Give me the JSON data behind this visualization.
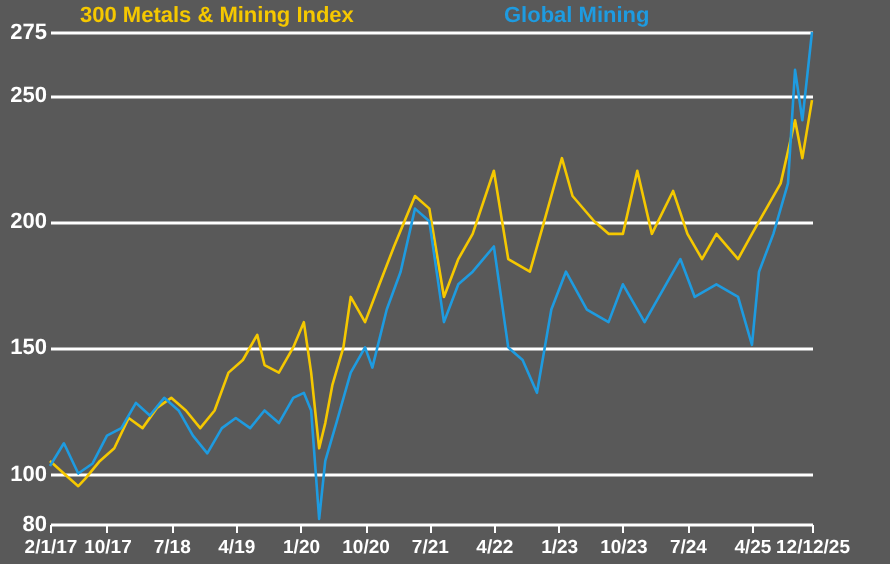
{
  "chart_data": {
    "type": "line",
    "xlim": [
      "2017-02-01",
      "2025-12-12"
    ],
    "xticks": [
      {
        "value": "2017-02-01",
        "label": "2/1/17"
      },
      {
        "value": "2017-10-01",
        "label": "10/17"
      },
      {
        "value": "2018-07-01",
        "label": "7/18"
      },
      {
        "value": "2019-04-01",
        "label": "4/19"
      },
      {
        "value": "2020-01-01",
        "label": "1/20"
      },
      {
        "value": "2020-10-01",
        "label": "10/20"
      },
      {
        "value": "2021-07-01",
        "label": "7/21"
      },
      {
        "value": "2022-04-01",
        "label": "4/22"
      },
      {
        "value": "2023-01-01",
        "label": "1/23"
      },
      {
        "value": "2023-10-01",
        "label": "10/23"
      },
      {
        "value": "2024-07-01",
        "label": "7/24"
      },
      {
        "value": "2025-04-01",
        "label": "4/25"
      },
      {
        "value": "2025-12-12",
        "label": "12/12/25"
      }
    ],
    "ylim": [
      80,
      275
    ],
    "yticks": [
      80,
      100,
      150,
      200,
      250,
      275
    ],
    "grid": "y",
    "legend": "top",
    "series": [
      {
        "name": "300 Metals & Mining Index",
        "color": "#f5c800",
        "x": [
          "2017-02-01",
          "2017-04-01",
          "2017-06-01",
          "2017-07-01",
          "2017-09-01",
          "2017-11-01",
          "2018-01-01",
          "2018-03-01",
          "2018-05-01",
          "2018-07-01",
          "2018-09-01",
          "2018-11-01",
          "2019-01-01",
          "2019-03-01",
          "2019-05-01",
          "2019-07-01",
          "2019-08-01",
          "2019-10-01",
          "2019-12-01",
          "2020-01-15",
          "2020-02-15",
          "2020-03-20",
          "2020-04-15",
          "2020-05-15",
          "2020-07-01",
          "2020-08-01",
          "2020-10-01",
          "2020-12-01",
          "2021-02-01",
          "2021-05-01",
          "2021-07-01",
          "2021-09-01",
          "2021-11-01",
          "2022-01-01",
          "2022-04-01",
          "2022-06-01",
          "2022-09-01",
          "2022-11-01",
          "2023-01-15",
          "2023-03-01",
          "2023-06-01",
          "2023-08-01",
          "2023-10-01",
          "2023-12-01",
          "2024-02-01",
          "2024-05-01",
          "2024-07-01",
          "2024-09-01",
          "2024-11-01",
          "2025-02-01",
          "2025-04-01",
          "2025-06-01",
          "2025-08-01",
          "2025-10-01",
          "2025-11-01",
          "2025-12-12"
        ],
        "values": [
          105,
          100,
          95,
          98,
          105,
          110,
          122,
          118,
          126,
          130,
          125,
          118,
          125,
          140,
          145,
          155,
          143,
          140,
          150,
          160,
          140,
          110,
          120,
          135,
          150,
          170,
          160,
          175,
          190,
          210,
          205,
          170,
          185,
          195,
          220,
          185,
          180,
          200,
          225,
          210,
          200,
          195,
          195,
          220,
          195,
          212,
          195,
          185,
          195,
          185,
          195,
          205,
          215,
          240,
          225,
          248
        ]
      },
      {
        "name": "Global Mining",
        "color": "#1e9be0",
        "x": [
          "2017-02-01",
          "2017-04-01",
          "2017-06-01",
          "2017-08-01",
          "2017-10-01",
          "2017-12-01",
          "2018-02-01",
          "2018-04-01",
          "2018-06-01",
          "2018-08-01",
          "2018-10-01",
          "2018-12-01",
          "2019-02-01",
          "2019-04-01",
          "2019-06-01",
          "2019-08-01",
          "2019-10-01",
          "2019-12-01",
          "2020-01-15",
          "2020-02-15",
          "2020-03-20",
          "2020-04-15",
          "2020-06-01",
          "2020-08-01",
          "2020-10-01",
          "2020-11-01",
          "2021-01-01",
          "2021-03-01",
          "2021-05-01",
          "2021-07-01",
          "2021-09-01",
          "2021-11-01",
          "2022-01-01",
          "2022-04-01",
          "2022-06-01",
          "2022-08-01",
          "2022-10-01",
          "2022-12-01",
          "2023-02-01",
          "2023-05-01",
          "2023-08-01",
          "2023-10-01",
          "2024-01-01",
          "2024-04-01",
          "2024-06-01",
          "2024-08-01",
          "2024-11-01",
          "2025-02-01",
          "2025-04-01",
          "2025-05-01",
          "2025-07-01",
          "2025-09-01",
          "2025-10-01",
          "2025-11-01",
          "2025-12-12"
        ],
        "values": [
          103,
          112,
          100,
          104,
          115,
          118,
          128,
          123,
          130,
          125,
          115,
          108,
          118,
          122,
          118,
          125,
          120,
          130,
          132,
          125,
          82,
          105,
          120,
          140,
          150,
          142,
          165,
          180,
          205,
          200,
          160,
          175,
          180,
          190,
          150,
          145,
          132,
          165,
          180,
          165,
          160,
          175,
          160,
          175,
          185,
          170,
          175,
          170,
          151,
          180,
          195,
          215,
          260,
          240,
          275
        ]
      }
    ]
  }
}
